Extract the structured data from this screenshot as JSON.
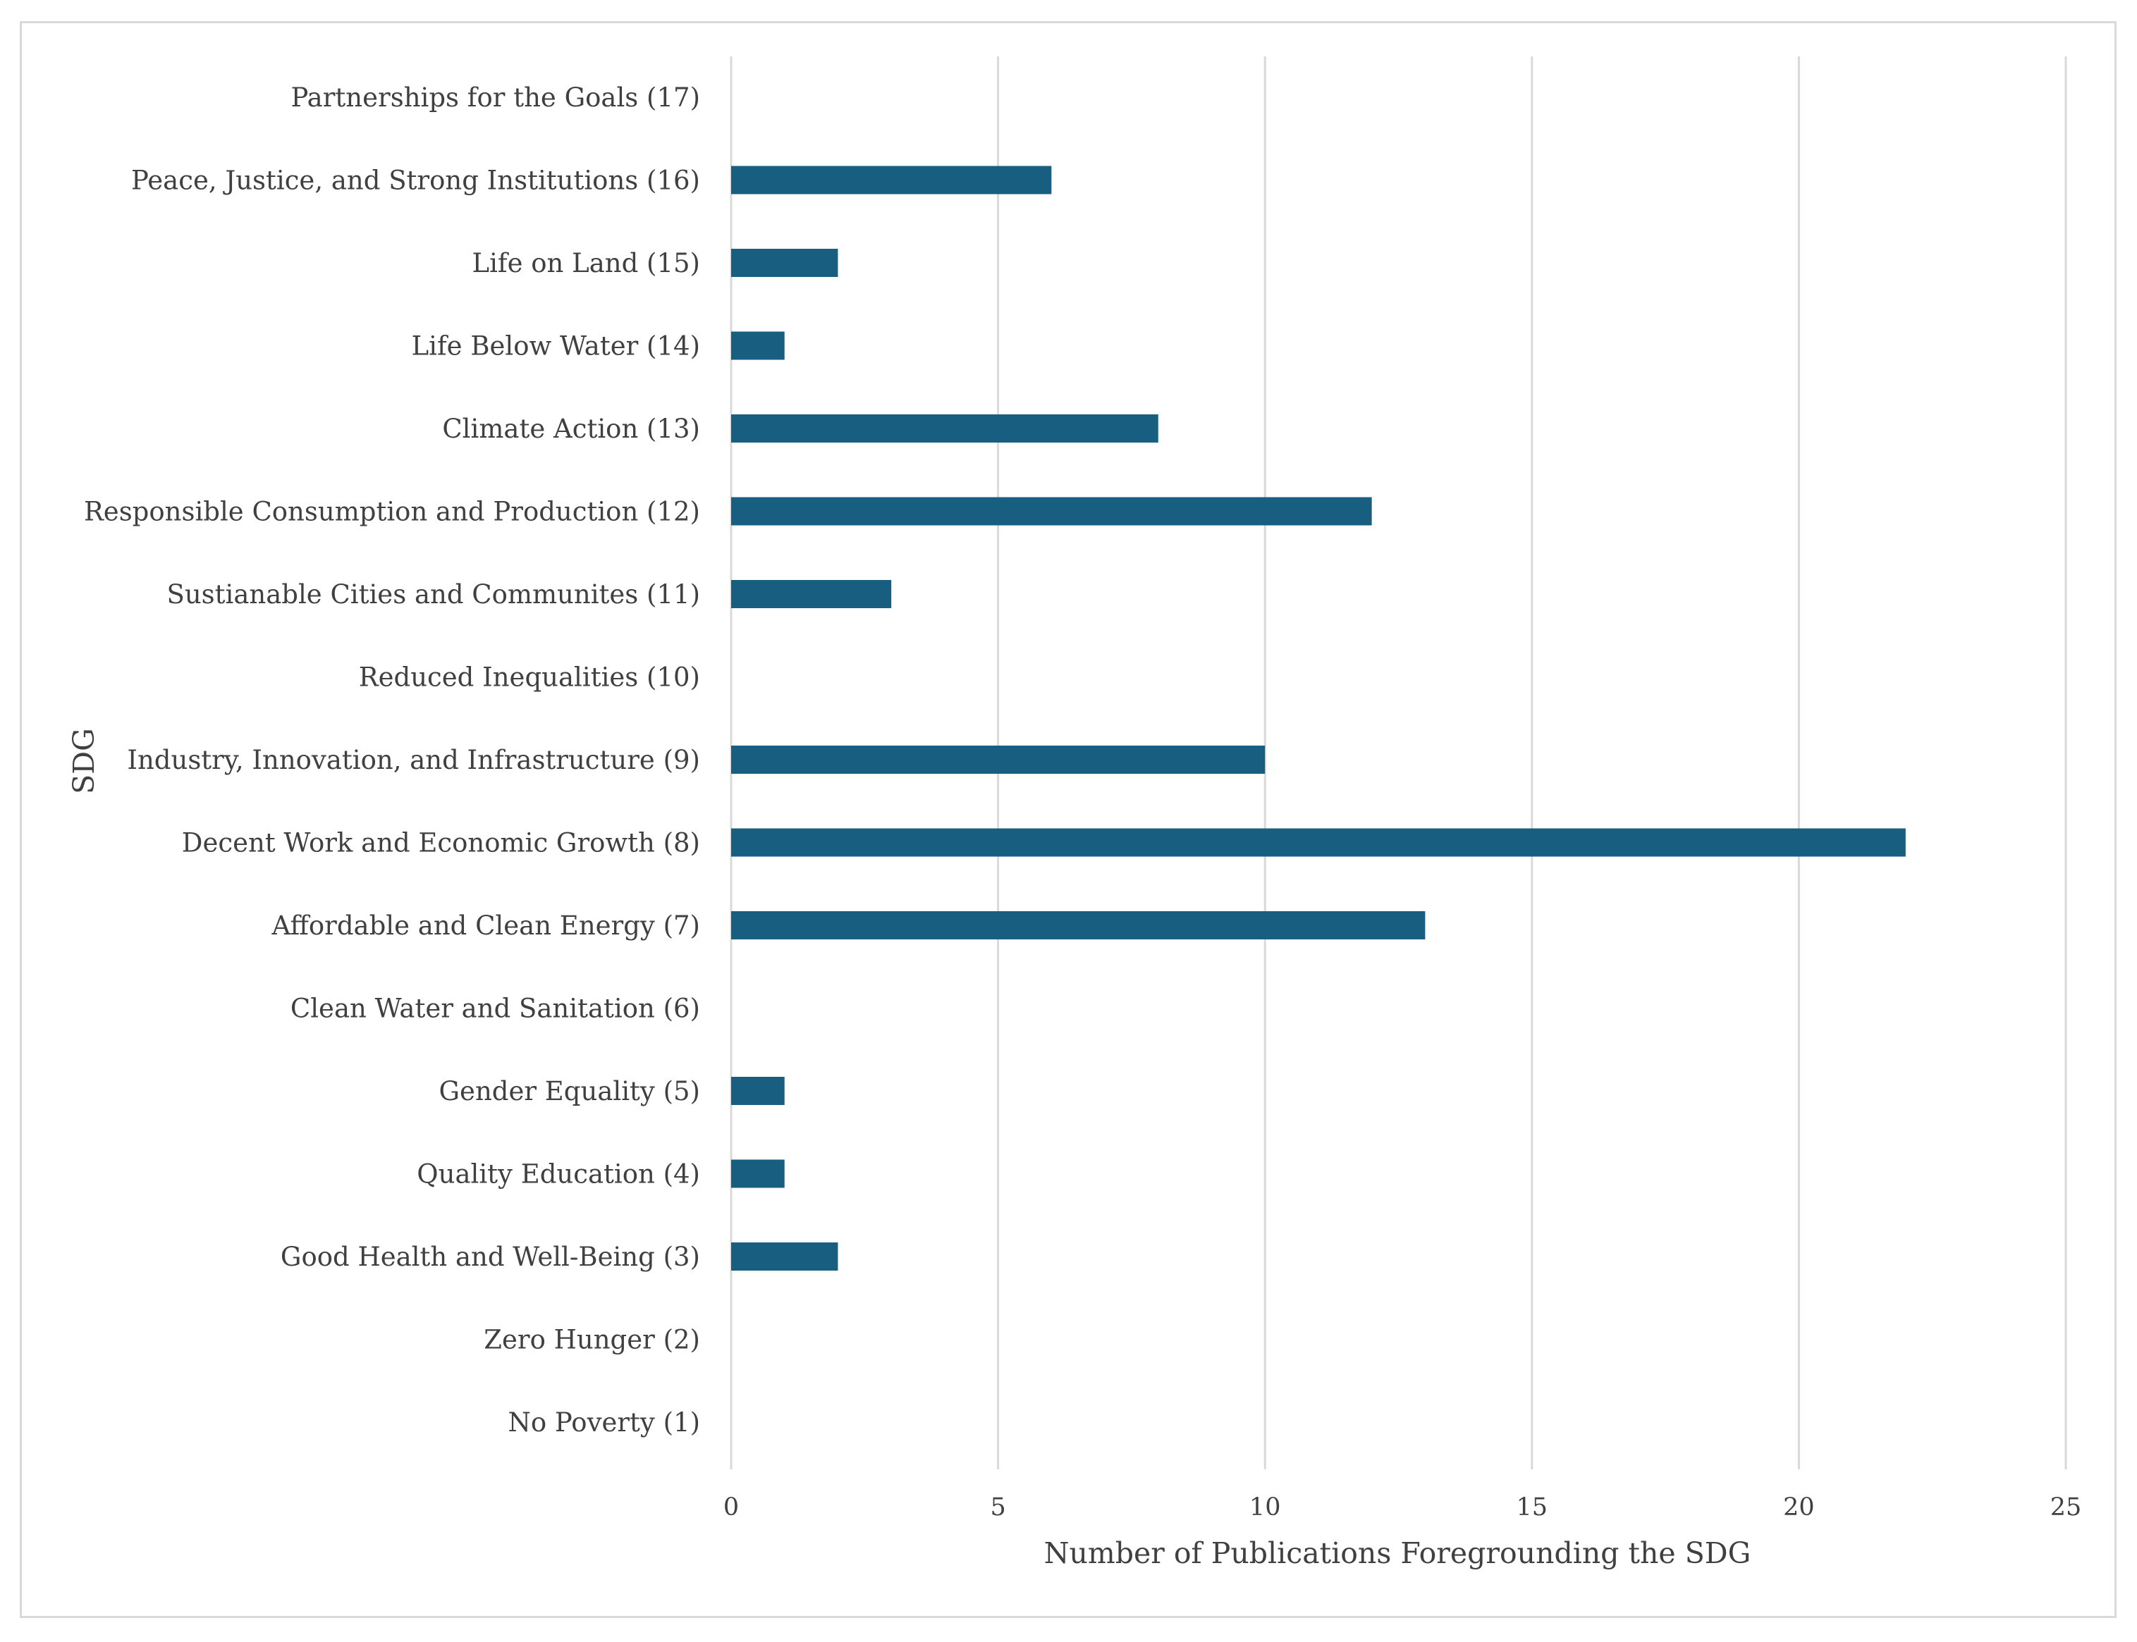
{
  "chart_data": {
    "type": "bar",
    "orientation": "horizontal",
    "title": "",
    "xlabel": "Number of Publications Foregrounding the SDG",
    "ylabel": "SDG",
    "xlim": [
      0,
      25
    ],
    "xticks": [
      0,
      5,
      10,
      15,
      20,
      25
    ],
    "grid": true,
    "bar_color": "#175e80",
    "categories": [
      "Partnerships for the Goals (17)",
      "Peace, Justice, and Strong Institutions (16)",
      "Life on Land (15)",
      "Life Below Water (14)",
      "Climate Action (13)",
      "Responsible Consumption and Production (12)",
      "Sustianable Cities and Communites (11)",
      "Reduced Inequalities (10)",
      "Industry, Innovation, and Infrastructure (9)",
      "Decent Work and Economic Growth (8)",
      "Affordable and Clean Energy (7)",
      "Clean Water and Sanitation (6)",
      "Gender Equality (5)",
      "Quality Education (4)",
      "Good Health and Well-Being (3)",
      "Zero Hunger (2)",
      "No Poverty (1)"
    ],
    "values": [
      0,
      6,
      2,
      1,
      8,
      12,
      3,
      0,
      10,
      22,
      13,
      0,
      1,
      1,
      2,
      0,
      0
    ]
  }
}
